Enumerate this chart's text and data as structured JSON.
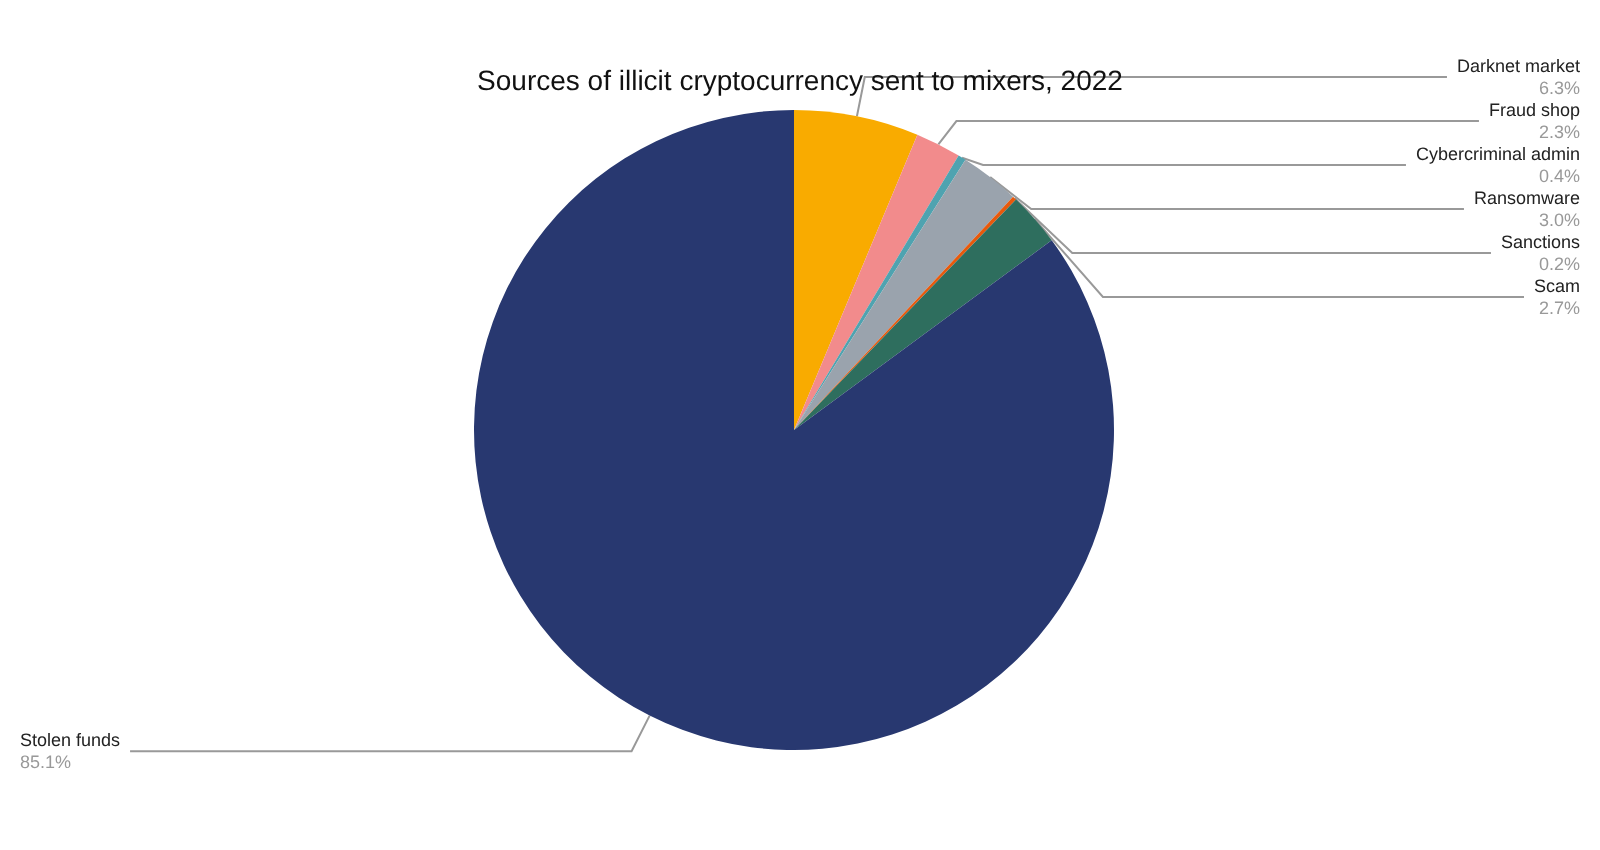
{
  "chart_data": {
    "type": "pie",
    "title": "Sources of illicit cryptocurrency sent to mixers, 2022",
    "categories": [
      "Darknet market",
      "Fraud shop",
      "Cybercriminal admin",
      "Ransomware",
      "Sanctions",
      "Scam",
      "Stolen funds"
    ],
    "values": [
      6.3,
      2.3,
      0.4,
      3.0,
      0.2,
      2.7,
      85.1
    ],
    "value_labels": [
      "6.3%",
      "2.3%",
      "0.4%",
      "3.0%",
      "0.2%",
      "2.7%",
      "85.1%"
    ],
    "colors": [
      "#f9ab00",
      "#f28b8c",
      "#4fa3b0",
      "#9aa3ad",
      "#e8590c",
      "#2e6e5e",
      "#283870"
    ],
    "legend": false
  }
}
